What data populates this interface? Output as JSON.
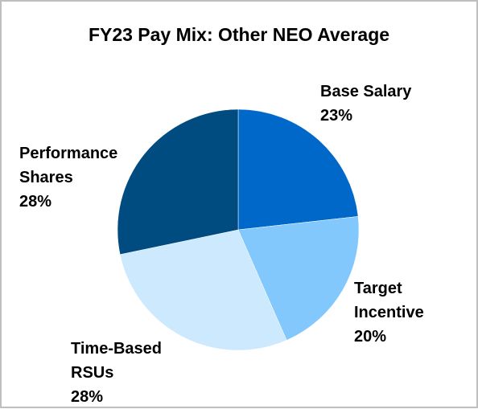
{
  "chart_data": {
    "type": "pie",
    "title": "FY23 Pay Mix: Other NEO Average",
    "slices": [
      {
        "label": "Base Salary",
        "value": 23,
        "value_label": "23%",
        "color": "#0068c9"
      },
      {
        "label": "Target Incentive",
        "value": 20,
        "value_label": "20%",
        "color": "#82c8fc"
      },
      {
        "label": "Time-Based RSUs",
        "value": 28,
        "value_label": "28%",
        "color": "#cce9fd"
      },
      {
        "label": "Performance Shares",
        "value": 28,
        "value_label": "28%",
        "color": "#004c80"
      }
    ],
    "start": "12 o'clock",
    "direction": "clockwise"
  }
}
